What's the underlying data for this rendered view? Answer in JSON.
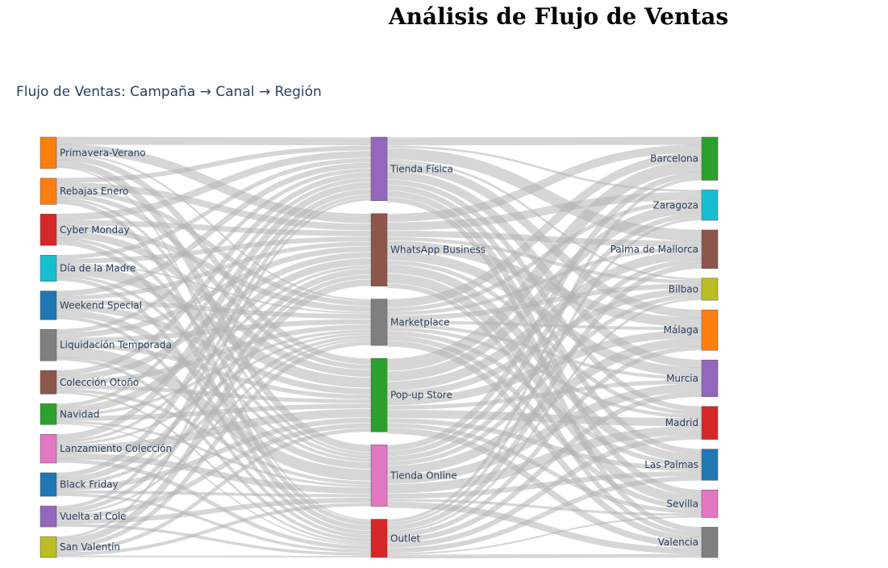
{
  "page": {
    "title": "Análisis de Flujo de Ventas"
  },
  "chart_data": {
    "type": "sankey",
    "title": "Flujo de Ventas: Campaña → Canal → Región",
    "columns": [
      {
        "name": "Campaña",
        "nodes": [
          {
            "label": "Primavera-Verano",
            "color": "#ff7f0e",
            "value": 36
          },
          {
            "label": "Rebajas Enero",
            "color": "#ff7f0e",
            "value": 30
          },
          {
            "label": "Cyber Monday",
            "color": "#d62728",
            "value": 36
          },
          {
            "label": "Día de la Madre",
            "color": "#17becf",
            "value": 30
          },
          {
            "label": "Weekend Special",
            "color": "#1f77b4",
            "value": 33
          },
          {
            "label": "Liquidación Temporada",
            "color": "#7f7f7f",
            "value": 36
          },
          {
            "label": "Colección Otoño",
            "color": "#8c564b",
            "value": 27
          },
          {
            "label": "Navidad",
            "color": "#2ca02c",
            "value": 24
          },
          {
            "label": "Lanzamiento Colección",
            "color": "#e377c2",
            "value": 33
          },
          {
            "label": "Black Friday",
            "color": "#1f77b4",
            "value": 27
          },
          {
            "label": "Vuelta al Cole",
            "color": "#9467bd",
            "value": 24
          },
          {
            "label": "San Valentín",
            "color": "#bcbd22",
            "value": 24
          }
        ]
      },
      {
        "name": "Canal",
        "nodes": [
          {
            "label": "Tienda Física",
            "color": "#9467bd",
            "value": 63
          },
          {
            "label": "WhatsApp Business",
            "color": "#8c564b",
            "value": 72
          },
          {
            "label": "Marketplace",
            "color": "#7f7f7f",
            "value": 46
          },
          {
            "label": "Pop-up Store",
            "color": "#2ca02c",
            "value": 73
          },
          {
            "label": "Tienda Online",
            "color": "#e377c2",
            "value": 61
          },
          {
            "label": "Outlet",
            "color": "#d62728",
            "value": 38
          }
        ]
      },
      {
        "name": "Región",
        "nodes": [
          {
            "label": "Barcelona",
            "color": "#2ca02c",
            "value": 47
          },
          {
            "label": "Zaragoza",
            "color": "#17becf",
            "value": 33
          },
          {
            "label": "Palma de Mallorca",
            "color": "#8c564b",
            "value": 42
          },
          {
            "label": "Bilbao",
            "color": "#bcbd22",
            "value": 24
          },
          {
            "label": "Málaga",
            "color": "#ff7f0e",
            "value": 44
          },
          {
            "label": "Murcia",
            "color": "#9467bd",
            "value": 40
          },
          {
            "label": "Madrid",
            "color": "#d62728",
            "value": 36
          },
          {
            "label": "Las Palmas",
            "color": "#1f77b4",
            "value": 34
          },
          {
            "label": "Sevilla",
            "color": "#e377c2",
            "value": 30
          },
          {
            "label": "Valencia",
            "color": "#7f7f7f",
            "value": 33
          }
        ]
      }
    ],
    "link_color": "#b4b4b4"
  }
}
